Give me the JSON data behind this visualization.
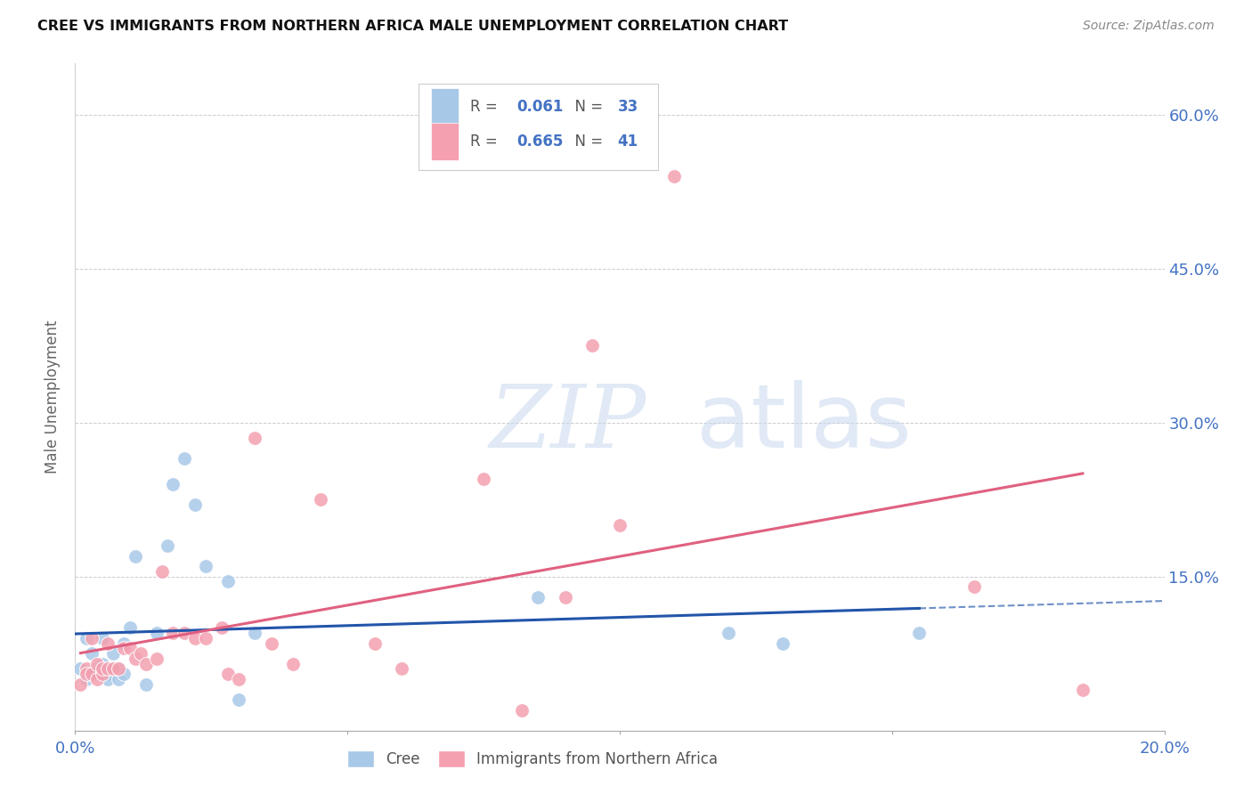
{
  "title": "CREE VS IMMIGRANTS FROM NORTHERN AFRICA MALE UNEMPLOYMENT CORRELATION CHART",
  "source": "Source: ZipAtlas.com",
  "ylabel": "Male Unemployment",
  "xlim": [
    0.0,
    0.2
  ],
  "ylim": [
    0.0,
    0.65
  ],
  "yticks": [
    0.0,
    0.15,
    0.3,
    0.45,
    0.6
  ],
  "ytick_labels": [
    "",
    "15.0%",
    "30.0%",
    "45.0%",
    "60.0%"
  ],
  "xticks": [
    0.0,
    0.05,
    0.1,
    0.15,
    0.2
  ],
  "xtick_labels": [
    "0.0%",
    "",
    "",
    "",
    "20.0%"
  ],
  "legend_R1": "0.061",
  "legend_N1": "33",
  "legend_R2": "0.665",
  "legend_N2": "41",
  "color_cree": "#a8c8e8",
  "color_immig": "#f4a0b0",
  "color_line_cree": "#2255aa",
  "color_line_immig": "#e06080",
  "background_color": "#ffffff",
  "watermark_zip": "ZIP",
  "watermark_atlas": "atlas",
  "cree_x": [
    0.001,
    0.002,
    0.002,
    0.003,
    0.003,
    0.004,
    0.004,
    0.005,
    0.005,
    0.006,
    0.006,
    0.007,
    0.007,
    0.008,
    0.008,
    0.009,
    0.009,
    0.01,
    0.011,
    0.013,
    0.015,
    0.017,
    0.018,
    0.02,
    0.022,
    0.024,
    0.028,
    0.03,
    0.033,
    0.085,
    0.12,
    0.13,
    0.155
  ],
  "cree_y": [
    0.06,
    0.09,
    0.05,
    0.055,
    0.075,
    0.06,
    0.055,
    0.09,
    0.065,
    0.055,
    0.05,
    0.06,
    0.075,
    0.05,
    0.06,
    0.055,
    0.085,
    0.1,
    0.17,
    0.045,
    0.095,
    0.18,
    0.24,
    0.265,
    0.22,
    0.16,
    0.145,
    0.03,
    0.095,
    0.13,
    0.095,
    0.085,
    0.095
  ],
  "immig_x": [
    0.001,
    0.002,
    0.002,
    0.003,
    0.003,
    0.004,
    0.004,
    0.005,
    0.005,
    0.006,
    0.006,
    0.007,
    0.008,
    0.009,
    0.01,
    0.011,
    0.012,
    0.013,
    0.015,
    0.016,
    0.018,
    0.02,
    0.022,
    0.024,
    0.027,
    0.028,
    0.03,
    0.033,
    0.036,
    0.04,
    0.045,
    0.055,
    0.06,
    0.075,
    0.082,
    0.09,
    0.095,
    0.1,
    0.11,
    0.165,
    0.185
  ],
  "immig_y": [
    0.045,
    0.06,
    0.055,
    0.055,
    0.09,
    0.05,
    0.065,
    0.055,
    0.06,
    0.06,
    0.085,
    0.06,
    0.06,
    0.08,
    0.08,
    0.07,
    0.075,
    0.065,
    0.07,
    0.155,
    0.095,
    0.095,
    0.09,
    0.09,
    0.1,
    0.055,
    0.05,
    0.285,
    0.085,
    0.065,
    0.225,
    0.085,
    0.06,
    0.245,
    0.02,
    0.13,
    0.375,
    0.2,
    0.54,
    0.14,
    0.04
  ]
}
